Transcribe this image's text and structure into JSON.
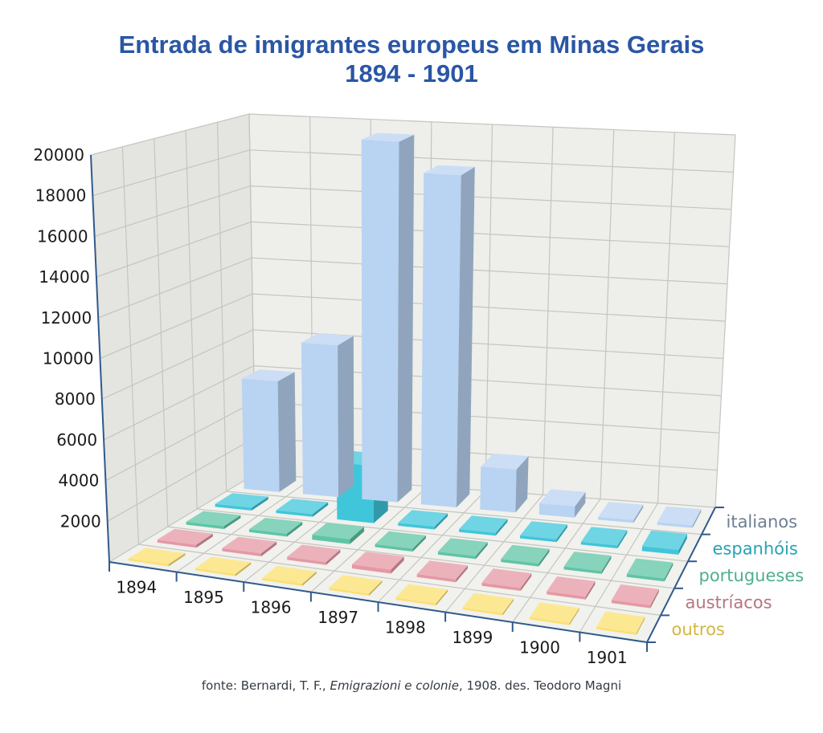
{
  "chart_data": {
    "type": "bar",
    "subtype": "3d-column",
    "title": "Entrada de imigrantes europeus em Minas Gerais",
    "subtitle": "1894 - 1901",
    "xlabel": "",
    "ylabel": "",
    "ylim": [
      0,
      20000
    ],
    "yticks": [
      "2000",
      "4000",
      "6000",
      "8000",
      "10000",
      "12000",
      "14000",
      "16000",
      "18000",
      "20000"
    ],
    "grid": true,
    "categories": [
      "1894",
      "1895",
      "1896",
      "1897",
      "1898",
      "1899",
      "1900",
      "1901"
    ],
    "series": [
      {
        "name": "italianos",
        "color": "#b9d3f2",
        "label_color": "#6e7f93",
        "values": [
          6000,
          8200,
          19400,
          17800,
          2300,
          600,
          150,
          150
        ]
      },
      {
        "name": "espanhóis",
        "color": "#3fc6da",
        "label_color": "#27a3b5",
        "values": [
          150,
          150,
          3000,
          150,
          150,
          150,
          150,
          250
        ]
      },
      {
        "name": "portugueses",
        "color": "#5fc4a6",
        "label_color": "#4fae92",
        "values": [
          150,
          150,
          250,
          150,
          150,
          150,
          150,
          150
        ]
      },
      {
        "name": "austríacos",
        "color": "#e598a4",
        "label_color": "#b57582",
        "values": [
          150,
          150,
          150,
          200,
          150,
          150,
          150,
          150
        ]
      },
      {
        "name": "outros",
        "color": "#fbe06f",
        "label_color": "#d4b640",
        "values": [
          100,
          100,
          100,
          100,
          100,
          100,
          100,
          100
        ]
      }
    ]
  },
  "caption": {
    "prefix": "fonte: Bernardi, T. F., ",
    "italic": "Emigrazioni e colonie",
    "suffix": ", 1908. des. Teodoro Magni"
  }
}
